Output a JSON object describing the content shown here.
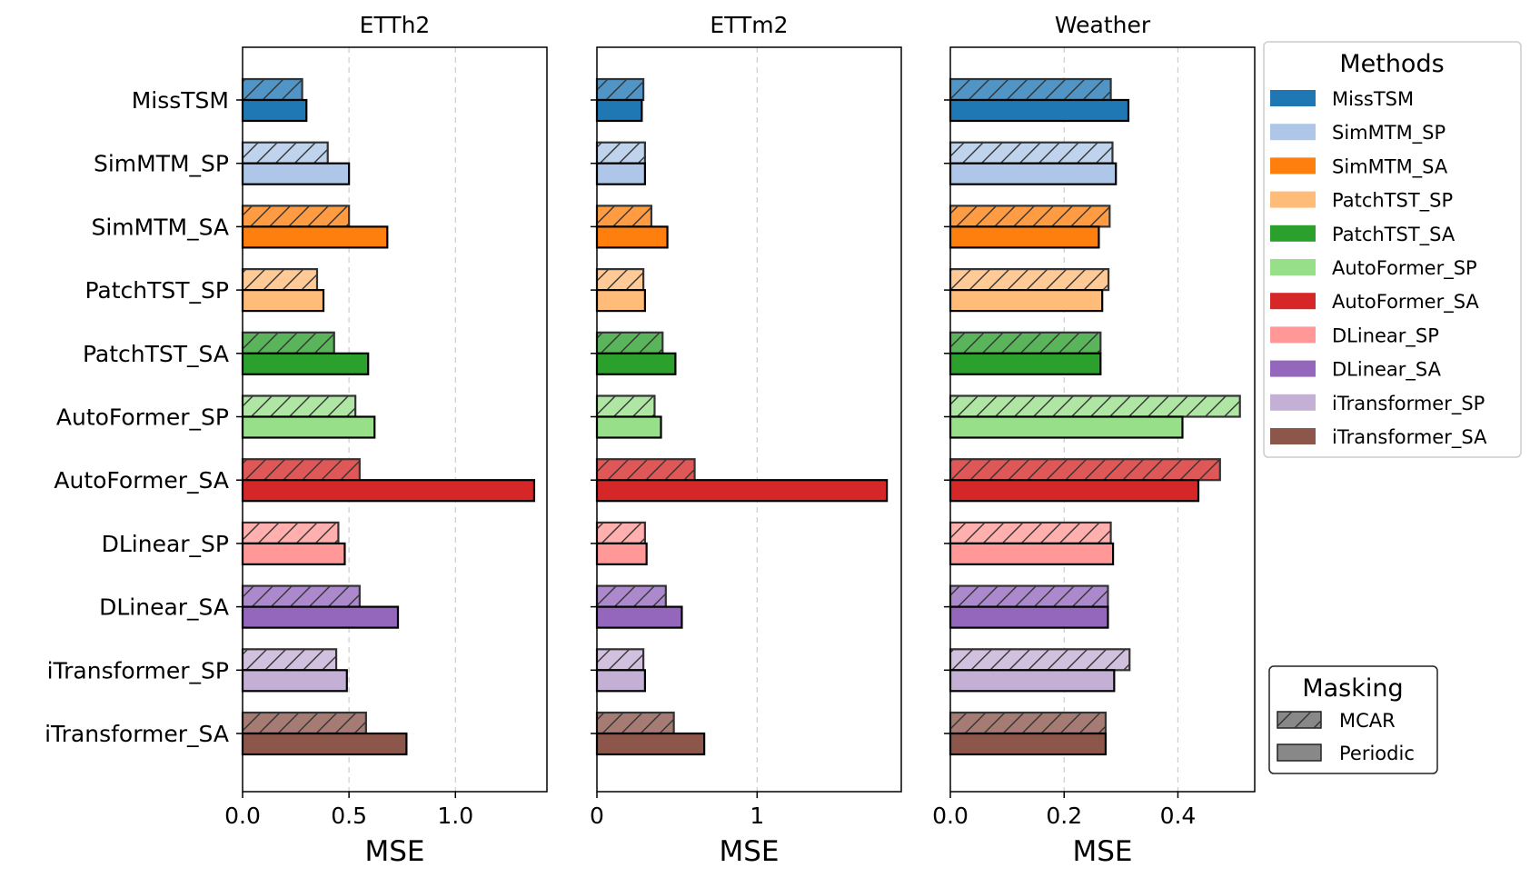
{
  "chart_data": {
    "type": "bar",
    "orientation": "horizontal",
    "methods": [
      "MissTSM",
      "SimMTM_SP",
      "SimMTM_SA",
      "PatchTST_SP",
      "PatchTST_SA",
      "AutoFormer_SP",
      "AutoFormer_SA",
      "DLinear_SP",
      "DLinear_SA",
      "iTransformer_SP",
      "iTransformer_SA"
    ],
    "colors": [
      "#1f77b4",
      "#aec7e8",
      "#ff7f0e",
      "#ffbb78",
      "#2ca02c",
      "#98df8a",
      "#d62728",
      "#ff9896",
      "#9467bd",
      "#c5b0d5",
      "#8c564b"
    ],
    "masking": [
      "MCAR",
      "Periodic"
    ],
    "xlabel": "MSE",
    "panels": [
      {
        "title": "ETTh2",
        "xlim": [
          0,
          1.43
        ],
        "ticks": [
          0.0,
          0.5,
          1.0
        ],
        "tick_labels": [
          "0.0",
          "0.5",
          "1.0"
        ],
        "MCAR": [
          0.28,
          0.4,
          0.5,
          0.35,
          0.43,
          0.53,
          0.55,
          0.45,
          0.55,
          0.44,
          0.58
        ],
        "Periodic": [
          0.3,
          0.5,
          0.68,
          0.38,
          0.59,
          0.62,
          1.37,
          0.48,
          0.73,
          0.49,
          0.77
        ]
      },
      {
        "title": "ETTm2",
        "xlim": [
          0,
          1.9
        ],
        "ticks": [
          0,
          1
        ],
        "tick_labels": [
          "0",
          "1"
        ],
        "MCAR": [
          0.29,
          0.3,
          0.34,
          0.29,
          0.41,
          0.36,
          0.61,
          0.3,
          0.43,
          0.29,
          0.48
        ],
        "Periodic": [
          0.28,
          0.3,
          0.44,
          0.3,
          0.49,
          0.4,
          1.81,
          0.31,
          0.53,
          0.3,
          0.67
        ]
      },
      {
        "title": "Weather",
        "xlim": [
          0,
          0.535
        ],
        "ticks": [
          0.0,
          0.2,
          0.4
        ],
        "tick_labels": [
          "0.0",
          "0.2",
          "0.4"
        ],
        "MCAR": [
          0.282,
          0.285,
          0.28,
          0.278,
          0.264,
          0.509,
          0.474,
          0.282,
          0.277,
          0.315,
          0.273
        ],
        "Periodic": [
          0.313,
          0.291,
          0.261,
          0.267,
          0.264,
          0.408,
          0.436,
          0.286,
          0.277,
          0.288,
          0.273
        ]
      }
    ],
    "legend_methods": {
      "title": "Methods",
      "entries": [
        "MissTSM",
        "SimMTM_SP",
        "SimMTM_SA",
        "PatchTST_SP",
        "PatchTST_SA",
        "AutoFormer_SP",
        "AutoFormer_SA",
        "DLinear_SP",
        "DLinear_SA",
        "iTransformer_SP",
        "iTransformer_SA"
      ]
    },
    "legend_masking": {
      "title": "Masking",
      "entries": [
        "MCAR",
        "Periodic"
      ]
    },
    "grid": "vertical dashed"
  }
}
